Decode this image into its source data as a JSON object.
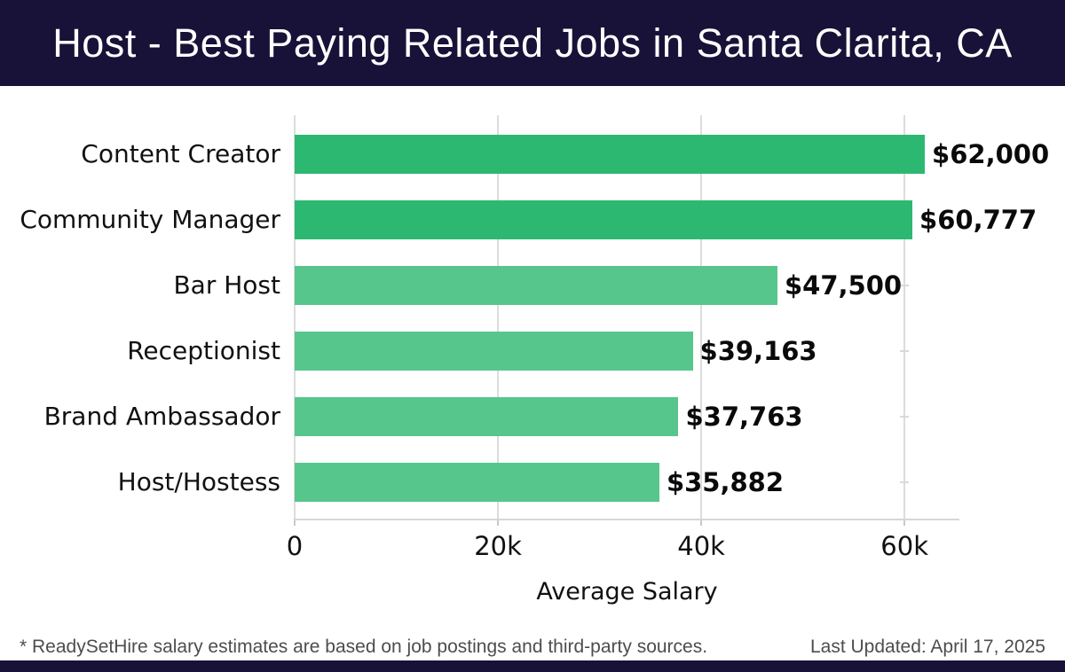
{
  "header": {
    "title": "Host - Best Paying Related Jobs in Santa Clarita, CA",
    "background_color": "#181238",
    "text_color": "#ffffff"
  },
  "chart_data": {
    "type": "bar",
    "orientation": "horizontal",
    "title": "Host - Best Paying Related Jobs in Santa Clarita, CA",
    "categories": [
      "Content Creator",
      "Community Manager",
      "Bar Host",
      "Receptionist",
      "Brand Ambassador",
      "Host/Hostess"
    ],
    "values": [
      62000,
      60777,
      47500,
      39163,
      37763,
      35882
    ],
    "value_labels": [
      "$62,000",
      "$60,777",
      "$47,500",
      "$39,163",
      "$37,763",
      "$35,882"
    ],
    "xlabel": "Average Salary",
    "ylabel": "",
    "x_ticks": [
      {
        "value": 0,
        "label": "0"
      },
      {
        "value": 20000,
        "label": "20k"
      },
      {
        "value": 40000,
        "label": "40k"
      },
      {
        "value": 60000,
        "label": "60k"
      }
    ],
    "xlim": [
      0,
      65400
    ],
    "grid": "vertical-light-gray",
    "legend": "none",
    "bar_color_highlight": "#2db872",
    "bar_color_normal": "#57c68c",
    "highlight_count": 2
  },
  "footer": {
    "note": "* ReadySetHire salary estimates are based on job postings and third-party sources.",
    "last_updated": "Last Updated: April 17, 2025"
  }
}
